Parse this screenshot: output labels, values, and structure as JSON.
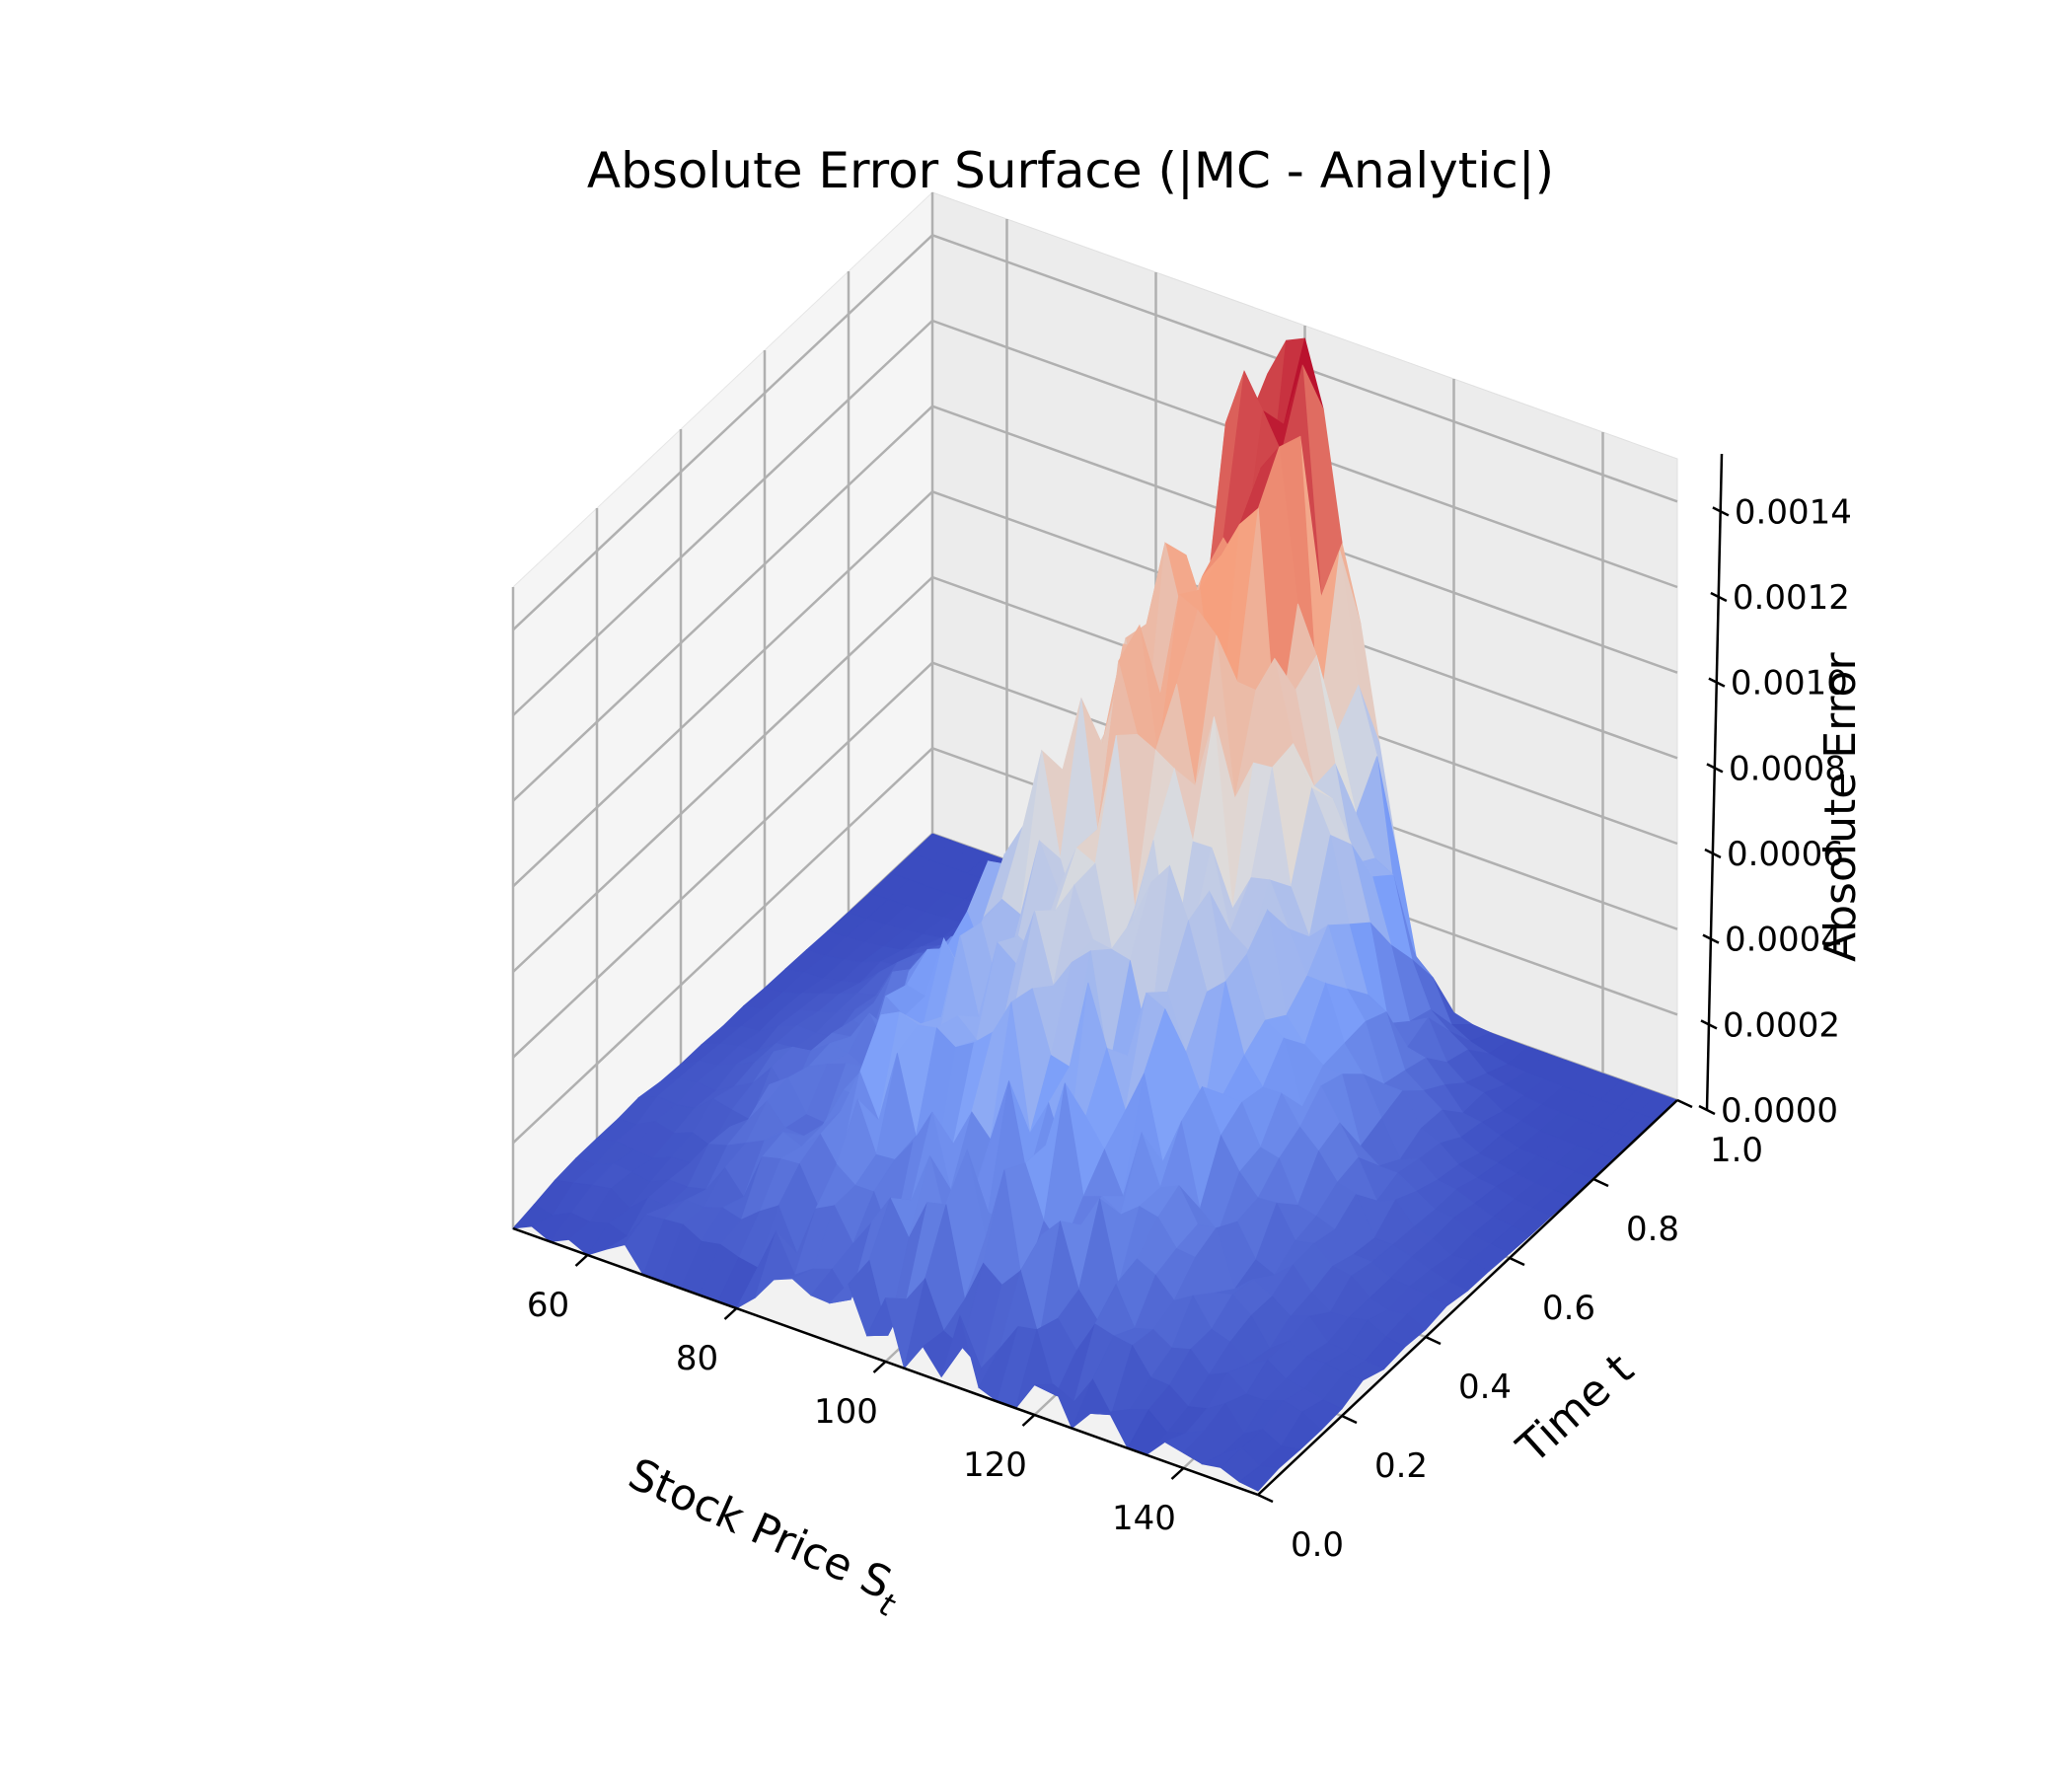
{
  "chart_data": {
    "type": "surface",
    "title": "Absolute Error Surface (|MC - Analytic|)",
    "xlabel": "Stock Price S",
    "xlabel_subscript": "t",
    "ylabel": "Time t",
    "zlabel": "Absolute Error",
    "x_ticks": [
      "60",
      "80",
      "100",
      "120",
      "140"
    ],
    "y_ticks": [
      "0.0",
      "0.2",
      "0.4",
      "0.6",
      "0.8",
      "1.0"
    ],
    "z_ticks": [
      "0.0000",
      "0.0002",
      "0.0004",
      "0.0006",
      "0.0008",
      "0.0010",
      "0.0012",
      "0.0014"
    ],
    "xlim": [
      50,
      150
    ],
    "ylim": [
      0,
      1
    ],
    "zlim": [
      0,
      0.0015
    ],
    "grid": true,
    "colormap": "coolwarm",
    "grid_resolution": {
      "x": 41,
      "y": 21
    },
    "surface_model": {
      "description": "sampled error surface; peak near S=100 at t=1",
      "peak_error": 0.00145,
      "center_stock_price": 100,
      "spread_base": 4,
      "spread_growth": 20,
      "time_exponent": 1.2,
      "noise_amplitude": 0.00025
    }
  }
}
